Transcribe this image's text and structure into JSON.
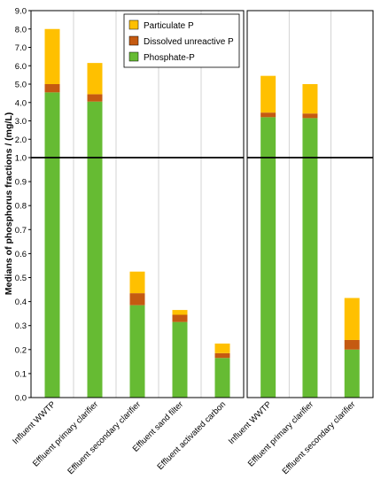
{
  "chart_data": {
    "type": "bar",
    "stacked": true,
    "scale": "broken-linear",
    "ylabel": "Medians of phosphorus fractions / (mg/L)",
    "y_ticks_lower": [
      "0.0",
      "0.1",
      "0.2",
      "0.3",
      "0.4",
      "0.5",
      "0.6",
      "0.7",
      "0.8",
      "0.9",
      "1.0"
    ],
    "y_ticks_upper": [
      "1.0",
      "2.0",
      "3.0",
      "4.0",
      "5.0",
      "6.0",
      "7.0",
      "8.0",
      "9.0"
    ],
    "ylim": [
      0,
      9
    ],
    "break_at": 1.0,
    "legend": {
      "placement": "top-center",
      "items": [
        {
          "label": "Particulate P",
          "color": "#ffc000"
        },
        {
          "label": "Dissolved unreactive P",
          "color": "#c55a11"
        },
        {
          "label": "Phosphate-P",
          "color": "#66bb33"
        }
      ]
    },
    "panels": [
      {
        "categories": [
          "Influent WWTP",
          "Effluent primary clarifier",
          "Effluent secondary clarifier",
          "Effluent sand filter",
          "Effluent activated carbon"
        ],
        "series": [
          {
            "name": "Phosphate-P",
            "values": [
              4.55,
              4.05,
              0.385,
              0.315,
              0.165
            ]
          },
          {
            "name": "Dissolved unreactive P",
            "values": [
              0.45,
              0.4,
              0.05,
              0.03,
              0.02
            ]
          },
          {
            "name": "Particulate P",
            "values": [
              3.0,
              1.7,
              0.09,
              0.02,
              0.04
            ]
          }
        ]
      },
      {
        "categories": [
          "Influent WWTP",
          "Effluent primary clarifier",
          "Effluent secondary clarifier"
        ],
        "series": [
          {
            "name": "Phosphate-P",
            "values": [
              3.2,
              3.15,
              0.2
            ]
          },
          {
            "name": "Dissolved unreactive P",
            "values": [
              0.25,
              0.25,
              0.04
            ]
          },
          {
            "name": "Particulate P",
            "values": [
              2.0,
              1.6,
              0.175
            ]
          }
        ]
      }
    ],
    "colors": {
      "Phosphate-P": "#66bb33",
      "Dissolved unreactive P": "#c55a11",
      "Particulate P": "#ffc000",
      "grid": "#c8c8c8",
      "border": "#000000"
    },
    "grid": "vertical"
  }
}
